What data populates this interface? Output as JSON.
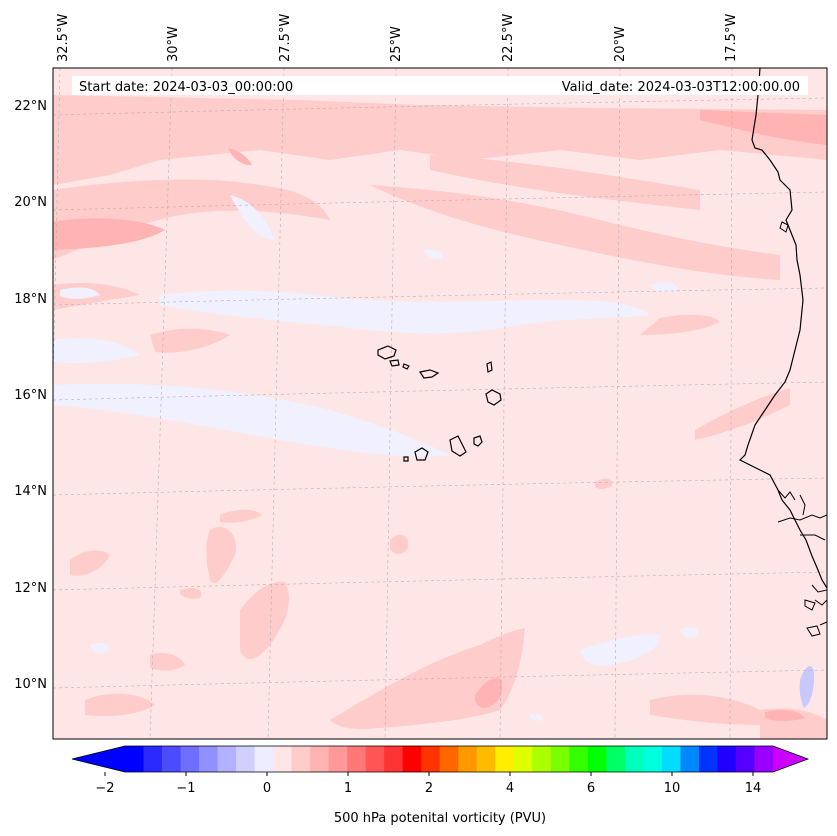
{
  "header": {
    "start_date": "Start date: 2024-03-03_00:00:00",
    "valid_date": "Valid_date: 2024-03-03T12:00:00.00"
  },
  "map": {
    "lon_labels": [
      "32.5°W",
      "30°W",
      "27.5°W",
      "25°W",
      "22.5°W",
      "20°W",
      "17.5°W"
    ],
    "lat_labels": [
      "22°N",
      "20°N",
      "18°N",
      "16°N",
      "14°N",
      "12°N",
      "10°N"
    ],
    "colors": {
      "background": "#ffe6e6",
      "light_red": "#ffcccc",
      "medium_red": "#ffb3b3",
      "light_blue": "#f0f0ff",
      "blue": "#c8c8ff",
      "coastline": "#000000",
      "grid": "#b0b0b0"
    }
  },
  "colorbar": {
    "tick_labels": [
      "−2",
      "−1",
      "0",
      "1",
      "2",
      "4",
      "6",
      "10",
      "14"
    ],
    "label": "500 hPa potenital vorticity (PVU)",
    "colors": [
      "#0000ff",
      "#2a2aff",
      "#4c4cff",
      "#6e6eff",
      "#9090ff",
      "#b2b2ff",
      "#d0d0ff",
      "#ededff",
      "#ffe6e6",
      "#ffcccc",
      "#ffb3b3",
      "#ff9999",
      "#ff7777",
      "#ff5555",
      "#ff3333",
      "#ff0000",
      "#ff3300",
      "#ff6600",
      "#ff9900",
      "#ffbb00",
      "#ffee00",
      "#ddff00",
      "#aaff00",
      "#77ff00",
      "#33ff00",
      "#00ff00",
      "#00ff66",
      "#00ffbb",
      "#00ffdd",
      "#00ddff",
      "#0088ff",
      "#0033ff",
      "#2200ff",
      "#5500ff",
      "#9900ff"
    ],
    "under_color": "#0000ff",
    "over_color": "#cc00ff"
  }
}
